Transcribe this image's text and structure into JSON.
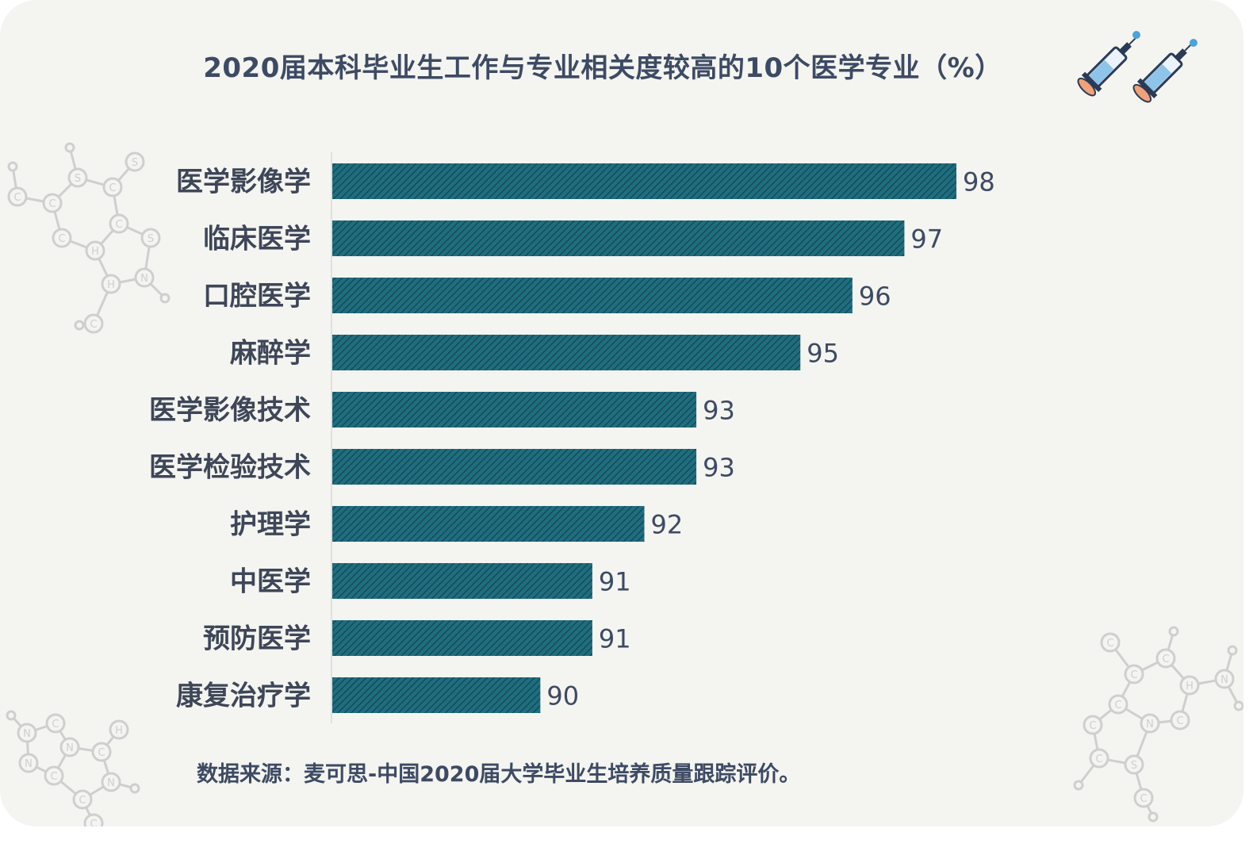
{
  "title": "2020届本科毕业生工作与专业相关度较高的10个医学专业（%）",
  "source": "数据来源：麦可思-中国2020届大学毕业生培养质量跟踪评价。",
  "colors": {
    "bar": "#1f6e80",
    "bar_stripe": "#154b58",
    "text": "#3d4a63",
    "background": "#f4f4f1"
  },
  "decorations": {
    "molecule_letters": [
      "C",
      "C",
      "S",
      "C",
      "S",
      "C",
      "H",
      "C",
      "S",
      "H",
      "N",
      "C",
      "N",
      "C",
      "N",
      "C",
      "H",
      "N",
      "C",
      "C",
      "N",
      "C",
      "C",
      "C",
      "C",
      "H",
      "N",
      "C",
      "N",
      "C"
    ],
    "icons": [
      "syringe-icon",
      "syringe-icon"
    ]
  },
  "chart_data": {
    "type": "bar",
    "orientation": "horizontal",
    "title": "2020届本科毕业生工作与专业相关度较高的10个医学专业（%）",
    "categories": [
      "医学影像学",
      "临床医学",
      "口腔医学",
      "麻醉学",
      "医学影像技术",
      "医学检验技术",
      "护理学",
      "中医学",
      "预防医学",
      "康复治疗学"
    ],
    "values": [
      98,
      97,
      96,
      95,
      93,
      93,
      92,
      91,
      91,
      90
    ],
    "xlim": [
      86,
      100
    ],
    "grid": false,
    "legend": "none"
  }
}
